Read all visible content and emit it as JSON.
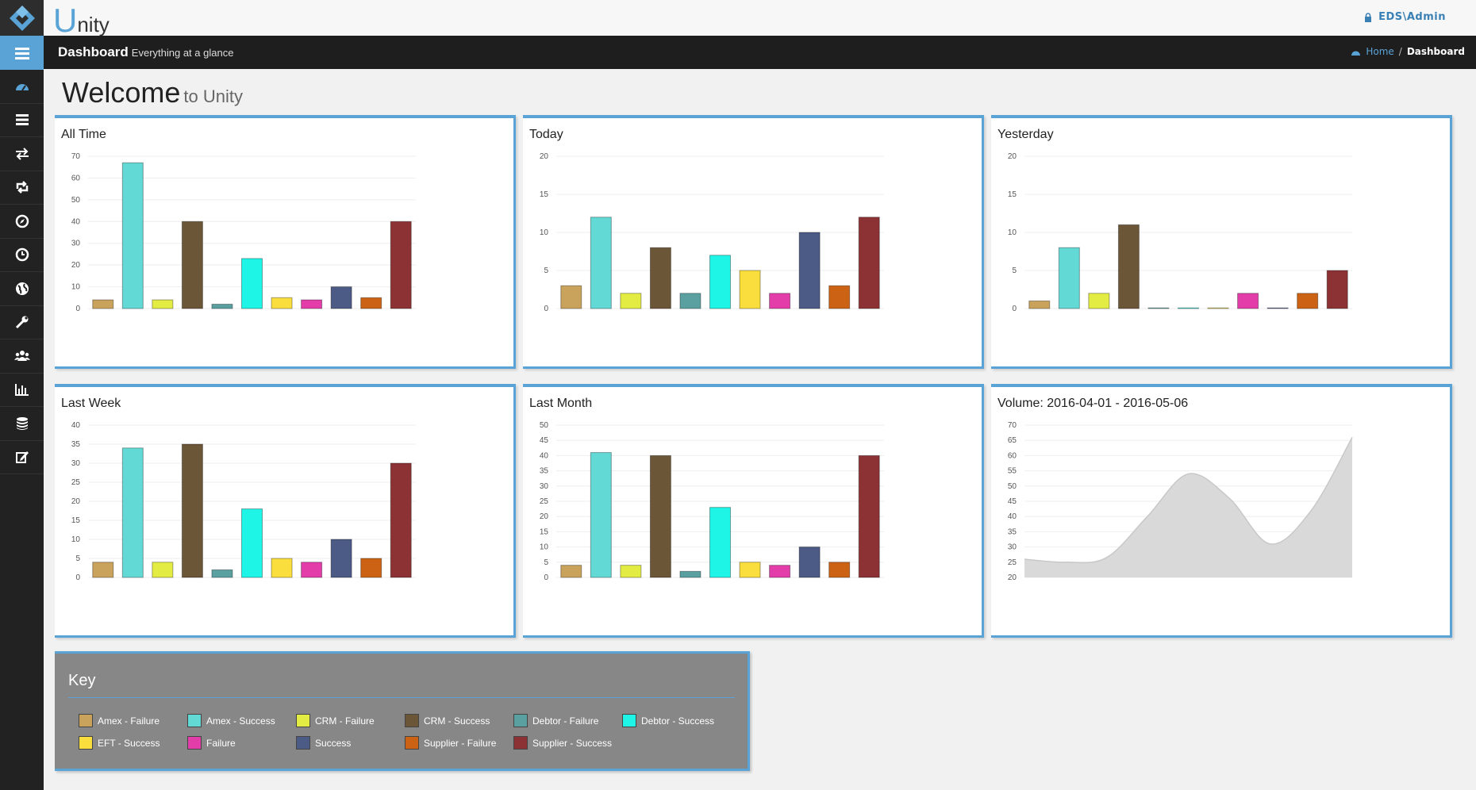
{
  "app": {
    "brand_u": "U",
    "brand_rest": "nity",
    "user": "EDS\\Admin"
  },
  "pagebar": {
    "title": "Dashboard",
    "subtitle": "Everything at a glance"
  },
  "breadcrumb": {
    "home": "Home",
    "sep": "/",
    "current": "Dashboard"
  },
  "welcome": {
    "big": "Welcome",
    "small": "to Unity"
  },
  "sidebar": {
    "icons": [
      "menu-icon",
      "dashboard-icon",
      "list-icon",
      "transfer-icon",
      "retweet-icon",
      "compass-icon",
      "clock-icon",
      "globe-icon",
      "wrench-icon",
      "users-icon",
      "bar-chart-icon",
      "database-icon",
      "edit-icon"
    ]
  },
  "colors": {
    "accent": "#5aa3d6",
    "series": [
      "#c9a25b",
      "#63d9d5",
      "#e3ec42",
      "#6b5638",
      "#5aa0a1",
      "#1ef5e7",
      "#f9de3d",
      "#e23da9",
      "#4c5a86",
      "#cc6314",
      "#8c3235"
    ]
  },
  "key": {
    "title": "Key",
    "items": [
      {
        "label": "Amex - Failure",
        "color": "#c9a25b"
      },
      {
        "label": "Amex - Success",
        "color": "#63d9d5"
      },
      {
        "label": "CRM - Failure",
        "color": "#e3ec42"
      },
      {
        "label": "CRM - Success",
        "color": "#6b5638"
      },
      {
        "label": "Debtor - Failure",
        "color": "#5aa0a1"
      },
      {
        "label": "Debtor - Success",
        "color": "#1ef5e7"
      },
      {
        "label": "EFT - Success",
        "color": "#f9de3d"
      },
      {
        "label": "Failure",
        "color": "#e23da9"
      },
      {
        "label": "Success",
        "color": "#4c5a86"
      },
      {
        "label": "Supplier - Failure",
        "color": "#cc6314"
      },
      {
        "label": "Supplier - Success",
        "color": "#8c3235"
      }
    ]
  },
  "chart_data": [
    {
      "title": "All Time",
      "type": "bar",
      "ylim": [
        0,
        70
      ],
      "ticks": [
        "0",
        "10",
        "20",
        "30",
        "40",
        "50",
        "60",
        "70"
      ],
      "values": [
        4,
        67,
        4,
        40,
        2,
        23,
        5,
        4,
        10,
        5,
        40
      ]
    },
    {
      "title": "Today",
      "type": "bar",
      "ylim": [
        0,
        20
      ],
      "ticks": [
        "0",
        "5",
        "10",
        "15",
        "20"
      ],
      "values": [
        3,
        12,
        2,
        8,
        2,
        7,
        5,
        2,
        10,
        3,
        12
      ]
    },
    {
      "title": "Yesterday",
      "type": "bar",
      "ylim": [
        0,
        20
      ],
      "ticks": [
        "0",
        "5",
        "10",
        "15",
        "20"
      ],
      "values": [
        1,
        8,
        2,
        11,
        0,
        0,
        0,
        2,
        0,
        2,
        5
      ]
    },
    {
      "title": "Last Week",
      "type": "bar",
      "ylim": [
        0,
        40
      ],
      "ticks": [
        "0",
        "5",
        "10",
        "15",
        "20",
        "25",
        "30",
        "35",
        "40"
      ],
      "values": [
        4,
        34,
        4,
        35,
        2,
        18,
        5,
        4,
        10,
        5,
        30
      ]
    },
    {
      "title": "Last Month",
      "type": "bar",
      "ylim": [
        0,
        50
      ],
      "ticks": [
        "0",
        "5",
        "10",
        "15",
        "20",
        "25",
        "30",
        "35",
        "40",
        "45",
        "50"
      ],
      "values": [
        4,
        41,
        4,
        40,
        2,
        23,
        5,
        4,
        10,
        5,
        40
      ]
    },
    {
      "title": "Volume: 2016-04-01 - 2016-05-06",
      "type": "area",
      "ylim": [
        20,
        70
      ],
      "ticks": [
        "20",
        "25",
        "30",
        "35",
        "40",
        "45",
        "50",
        "55",
        "60",
        "65",
        "70"
      ],
      "values": [
        26,
        25,
        26.5,
        40,
        54,
        46,
        31,
        42,
        66
      ]
    }
  ]
}
